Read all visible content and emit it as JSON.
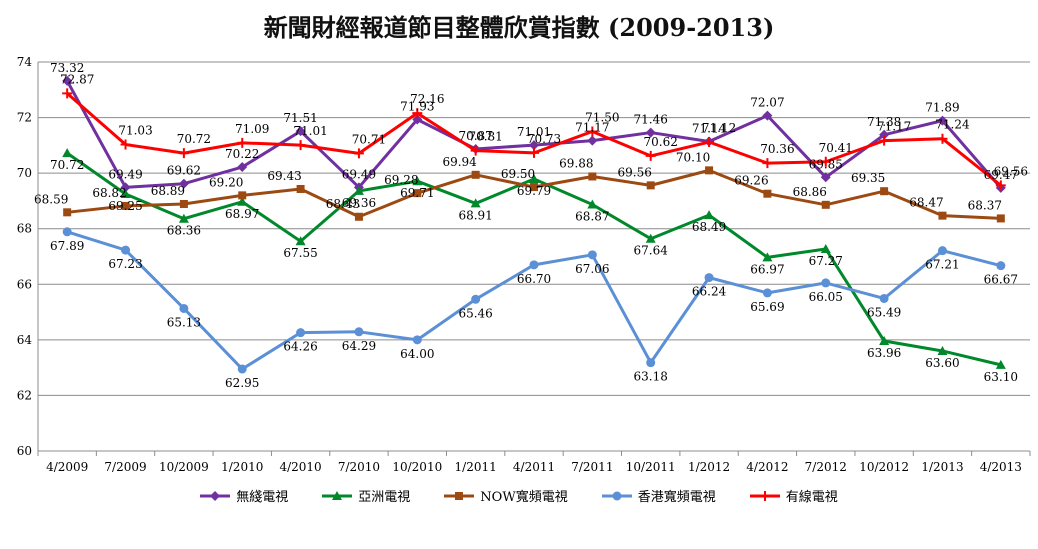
{
  "chart_data": {
    "type": "line",
    "title": "新聞財經報道節目整體欣賞指數 (2009-2013)",
    "categories": [
      "4/2009",
      "7/2009",
      "10/2009",
      "1/2010",
      "4/2010",
      "7/2010",
      "10/2010",
      "1/2011",
      "4/2011",
      "7/2011",
      "10/2011",
      "1/2012",
      "4/2012",
      "7/2012",
      "10/2012",
      "1/2013",
      "4/2013"
    ],
    "ylim": [
      60,
      74
    ],
    "yticks": [
      60,
      62,
      64,
      66,
      68,
      70,
      72,
      74
    ],
    "grid": true,
    "legend_position": "bottom",
    "series": [
      {
        "name": "無綫電視",
        "color": "#7030A0",
        "marker": "diamond",
        "values": [
          73.32,
          69.49,
          69.62,
          70.22,
          71.51,
          69.49,
          71.93,
          70.87,
          71.01,
          71.17,
          71.46,
          71.14,
          72.07,
          69.85,
          71.38,
          71.89,
          69.47
        ]
      },
      {
        "name": "亞洲電視",
        "color": "#00882B",
        "marker": "triangle",
        "values": [
          70.72,
          69.25,
          68.36,
          68.97,
          67.55,
          69.36,
          69.71,
          68.91,
          69.79,
          68.87,
          67.64,
          68.49,
          66.97,
          67.27,
          63.96,
          63.6,
          63.1
        ]
      },
      {
        "name": "NOW寬頻電視",
        "color": "#9C4A12",
        "marker": "square",
        "values": [
          68.59,
          68.82,
          68.89,
          69.2,
          69.43,
          68.43,
          69.28,
          69.94,
          69.5,
          69.88,
          69.56,
          70.1,
          69.26,
          68.86,
          69.35,
          68.47,
          68.37
        ]
      },
      {
        "name": "香港寬頻電視",
        "color": "#5B8FD6",
        "marker": "circle",
        "values": [
          67.89,
          67.23,
          65.13,
          62.95,
          64.26,
          64.29,
          64.0,
          65.46,
          66.7,
          67.06,
          63.18,
          66.24,
          65.69,
          66.05,
          65.49,
          67.21,
          66.67
        ]
      },
      {
        "name": "有線電視",
        "color": "#FF0000",
        "marker": "plus",
        "values": [
          72.87,
          71.03,
          70.72,
          71.09,
          71.01,
          70.71,
          72.16,
          70.81,
          70.73,
          71.5,
          70.62,
          71.12,
          70.36,
          70.41,
          71.17,
          71.24,
          69.56
        ]
      }
    ]
  }
}
